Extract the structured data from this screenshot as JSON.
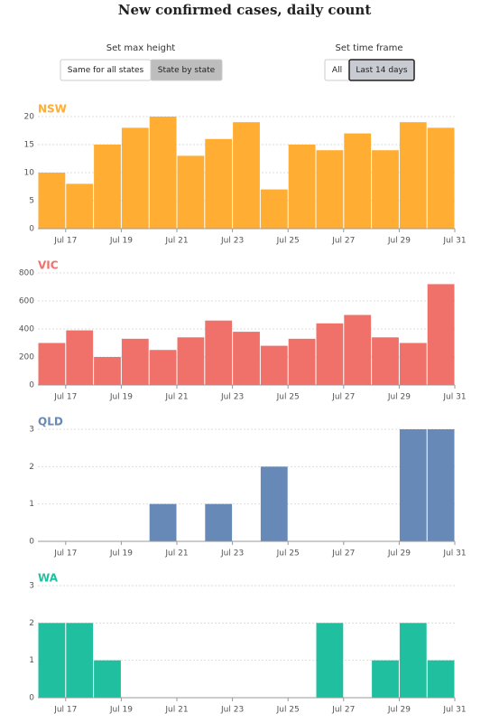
{
  "title": "New confirmed cases, daily count",
  "controls": {
    "max_height": {
      "label": "Set max height",
      "options": [
        "Same for all states",
        "State by state"
      ],
      "selected": 1
    },
    "time_frame": {
      "label": "Set time frame",
      "options": [
        "All",
        "Last 14 days"
      ],
      "selected": 1
    }
  },
  "chart_data": [
    {
      "type": "histogram",
      "title": "NSW",
      "color": "#ffad33",
      "bins": [
        16,
        17,
        18,
        19,
        20,
        21,
        22,
        23,
        24,
        25,
        26,
        27,
        28,
        29,
        30,
        31
      ],
      "values": [
        10,
        8,
        15,
        18,
        20,
        13,
        16,
        19,
        7,
        15,
        14,
        17,
        14,
        19,
        18
      ],
      "xlim": [
        16,
        31
      ],
      "xticks": [
        {
          "value": 17,
          "label": "Jul 17"
        },
        {
          "value": 19,
          "label": "Jul 19"
        },
        {
          "value": 21,
          "label": "Jul 21"
        },
        {
          "value": 23,
          "label": "Jul 23"
        },
        {
          "value": 25,
          "label": "Jul 25"
        },
        {
          "value": 27,
          "label": "Jul 27"
        },
        {
          "value": 29,
          "label": "Jul 29"
        },
        {
          "value": 31,
          "label": "Jul 31"
        }
      ],
      "ylim": [
        0,
        20
      ],
      "yticks": [
        0,
        5,
        10,
        15,
        20
      ],
      "grid": true
    },
    {
      "type": "histogram",
      "title": "VIC",
      "color": "#f0706a",
      "bins": [
        16,
        17,
        18,
        19,
        20,
        21,
        22,
        23,
        24,
        25,
        26,
        27,
        28,
        29,
        30,
        31
      ],
      "values": [
        300,
        390,
        200,
        330,
        250,
        340,
        460,
        380,
        280,
        330,
        440,
        500,
        340,
        300,
        720
      ],
      "xlim": [
        16,
        31
      ],
      "xticks": [
        {
          "value": 17,
          "label": "Jul 17"
        },
        {
          "value": 19,
          "label": "Jul 19"
        },
        {
          "value": 21,
          "label": "Jul 21"
        },
        {
          "value": 23,
          "label": "Jul 23"
        },
        {
          "value": 25,
          "label": "Jul 25"
        },
        {
          "value": 27,
          "label": "Jul 27"
        },
        {
          "value": 29,
          "label": "Jul 29"
        },
        {
          "value": 31,
          "label": "Jul 31"
        }
      ],
      "ylim": [
        0,
        800
      ],
      "yticks": [
        0,
        200,
        400,
        600,
        800
      ],
      "grid": true
    },
    {
      "type": "histogram",
      "title": "QLD",
      "color": "#6689b8",
      "bins": [
        16,
        17,
        18,
        19,
        20,
        21,
        22,
        23,
        24,
        25,
        26,
        27,
        28,
        29,
        30,
        31
      ],
      "values": [
        0,
        0,
        0,
        0,
        1,
        0,
        1,
        0,
        2,
        0,
        0,
        0,
        0,
        3,
        3
      ],
      "xlim": [
        16,
        31
      ],
      "xticks": [
        {
          "value": 17,
          "label": "Jul 17"
        },
        {
          "value": 19,
          "label": "Jul 19"
        },
        {
          "value": 21,
          "label": "Jul 21"
        },
        {
          "value": 23,
          "label": "Jul 23"
        },
        {
          "value": 25,
          "label": "Jul 25"
        },
        {
          "value": 27,
          "label": "Jul 27"
        },
        {
          "value": 29,
          "label": "Jul 29"
        },
        {
          "value": 31,
          "label": "Jul 31"
        }
      ],
      "ylim": [
        0,
        3
      ],
      "yticks": [
        0,
        1,
        2,
        3
      ],
      "grid": true
    },
    {
      "type": "histogram",
      "title": "WA",
      "color": "#20bfa0",
      "bins": [
        16,
        17,
        18,
        19,
        20,
        21,
        22,
        23,
        24,
        25,
        26,
        27,
        28,
        29,
        30,
        31
      ],
      "values": [
        2,
        2,
        1,
        0,
        0,
        0,
        0,
        0,
        0,
        0,
        2,
        0,
        1,
        2,
        1
      ],
      "xlim": [
        16,
        31
      ],
      "xticks": [
        {
          "value": 17,
          "label": "Jul 17"
        },
        {
          "value": 19,
          "label": "Jul 19"
        },
        {
          "value": 21,
          "label": "Jul 21"
        },
        {
          "value": 23,
          "label": "Jul 23"
        },
        {
          "value": 25,
          "label": "Jul 25"
        },
        {
          "value": 27,
          "label": "Jul 27"
        },
        {
          "value": 29,
          "label": "Jul 29"
        },
        {
          "value": 31,
          "label": "Jul 31"
        }
      ],
      "ylim": [
        0,
        3
      ],
      "yticks": [
        0,
        1,
        2,
        3
      ],
      "grid": true
    }
  ]
}
